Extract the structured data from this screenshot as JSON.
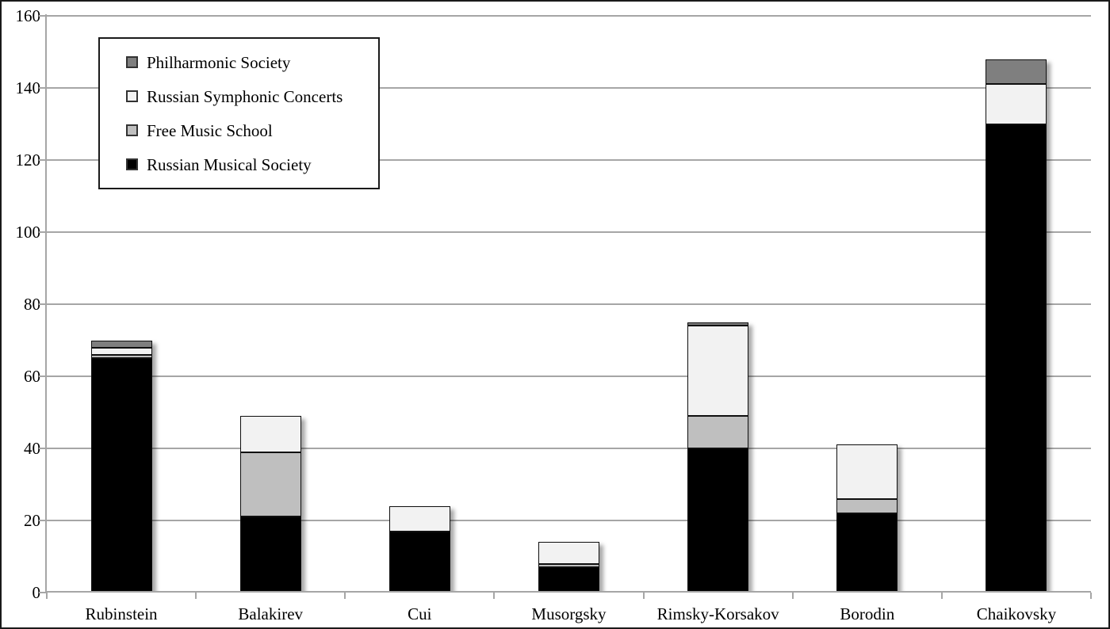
{
  "chart_data": {
    "type": "bar",
    "stacked": true,
    "title": "",
    "xlabel": "",
    "ylabel": "",
    "grid": "horizontal",
    "categories": [
      "Rubinstein",
      "Balakirev",
      "Cui",
      "Musorgsky",
      "Rimsky-Korsakov",
      "Borodin",
      "Chaikovsky"
    ],
    "series": [
      {
        "name": "Russian Musical Society",
        "color": "#000000",
        "values": [
          65,
          21,
          17,
          7,
          40,
          22,
          130
        ]
      },
      {
        "name": "Free Music School",
        "color": "#bfbfbf",
        "values": [
          1,
          18,
          0,
          1,
          9,
          4,
          0
        ]
      },
      {
        "name": "Russian Symphonic Concerts",
        "color": "#f2f2f2",
        "values": [
          2,
          10,
          7,
          6,
          25,
          15,
          11
        ]
      },
      {
        "name": "Philharmonic Society",
        "color": "#7f7f7f",
        "values": [
          2,
          0,
          0,
          0,
          1,
          0,
          7
        ]
      }
    ],
    "totals": [
      70,
      49,
      24,
      14,
      75,
      41,
      148
    ],
    "y_axis": {
      "min": 0,
      "max": 160,
      "tick_step": 20,
      "ticks": [
        0,
        20,
        40,
        60,
        80,
        100,
        120,
        140,
        160
      ]
    },
    "legend": {
      "position": "top-left",
      "entries_top_to_bottom": [
        "Philharmonic Society",
        "Russian Symphonic Concerts",
        "Free Music School",
        "Russian Musical Society"
      ]
    }
  },
  "style": {
    "grid_color": "#a6a6a6",
    "axis_color": "#a6a6a6",
    "segment_border_color": "#0f0f0f",
    "frame_border_color": "#1a1a1a",
    "background_color": "#ffffff",
    "text_color": "#000000"
  }
}
